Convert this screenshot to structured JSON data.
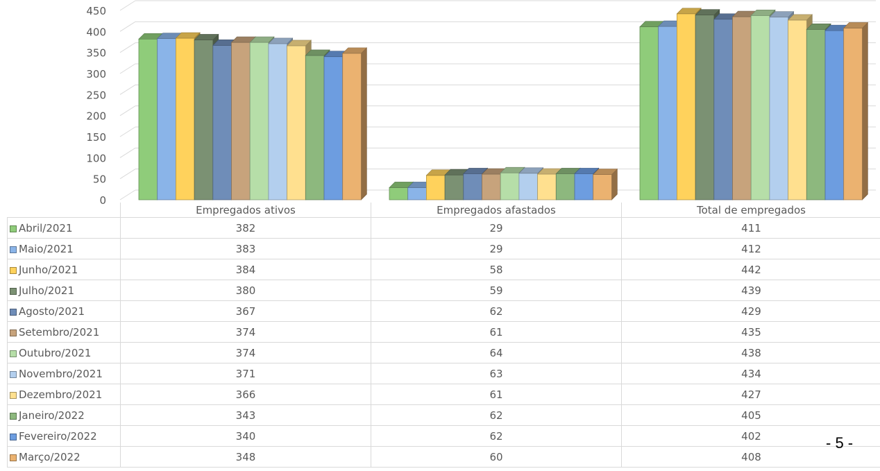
{
  "chart_data": {
    "type": "bar",
    "title": "",
    "xlabel": "",
    "ylabel": "",
    "ylim": [
      0,
      450
    ],
    "yticks": [
      0,
      50,
      100,
      150,
      200,
      250,
      300,
      350,
      400,
      450
    ],
    "grid": true,
    "legend": "data-table",
    "style": "3d-clustered-column",
    "categories": [
      "Empregados ativos",
      "Empregados afastados",
      "Total de empregados"
    ],
    "series": [
      {
        "name": "Abril/2021",
        "color": "#8fcc7a",
        "values": [
          382,
          29,
          411
        ]
      },
      {
        "name": "Maio/2021",
        "color": "#8ab4e8",
        "values": [
          383,
          29,
          412
        ]
      },
      {
        "name": "Junho/2021",
        "color": "#ffd25c",
        "values": [
          384,
          58,
          442
        ]
      },
      {
        "name": "Julho/2021",
        "color": "#7b9173",
        "values": [
          380,
          59,
          439
        ]
      },
      {
        "name": "Agosto/2021",
        "color": "#6f8db8",
        "values": [
          367,
          62,
          429
        ]
      },
      {
        "name": "Setembro/2021",
        "color": "#c7a37c",
        "values": [
          374,
          61,
          435
        ]
      },
      {
        "name": "Outubro/2021",
        "color": "#b6dea8",
        "values": [
          374,
          64,
          438
        ]
      },
      {
        "name": "Novembro/2021",
        "color": "#b3cfee",
        "values": [
          371,
          63,
          434
        ]
      },
      {
        "name": "Dezembro/2021",
        "color": "#ffe08f",
        "values": [
          366,
          61,
          427
        ]
      },
      {
        "name": "Janeiro/2022",
        "color": "#8db87e",
        "values": [
          343,
          62,
          405
        ]
      },
      {
        "name": "Fevereiro/2022",
        "color": "#6d9de0",
        "values": [
          340,
          62,
          402
        ]
      },
      {
        "name": "Março/2022",
        "color": "#ebb270",
        "values": [
          348,
          60,
          408
        ]
      }
    ]
  },
  "page_number": "- 5 -"
}
